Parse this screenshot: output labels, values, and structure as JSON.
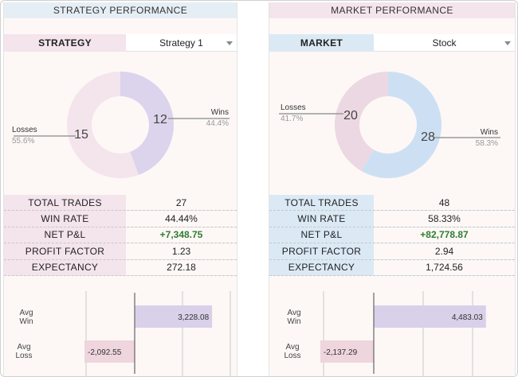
{
  "strategy": {
    "title": "STRATEGY PERFORMANCE",
    "selector_label": "STRATEGY",
    "selector_value": "Strategy 1",
    "donut": {
      "losses_label": "Losses",
      "losses_count": "15",
      "losses_pct": "55.6%",
      "wins_label": "Wins",
      "wins_count": "12",
      "wins_pct": "44.4%",
      "wins_fraction": 0.444,
      "loss_color": "#f4e4ec",
      "win_color": "#dcd3ec"
    },
    "stats": [
      {
        "label": "TOTAL TRADES",
        "value": "27"
      },
      {
        "label": "WIN RATE",
        "value": "44.44%"
      },
      {
        "label": "NET P&L",
        "value": "+7,348.75"
      },
      {
        "label": "PROFIT FACTOR",
        "value": "1.23"
      },
      {
        "label": "EXPECTANCY",
        "value": "272.18"
      }
    ],
    "avg": {
      "win_label_1": "Avg",
      "win_label_2": "Win",
      "win_value": 3228.08,
      "win_text": "3,228.08",
      "loss_label_1": "Avg",
      "loss_label_2": "Loss",
      "loss_value": -2092.55,
      "loss_text": "-2,092.55"
    }
  },
  "market": {
    "title": "MARKET PERFORMANCE",
    "selector_label": "MARKET",
    "selector_value": "Stock",
    "donut": {
      "losses_label": "Losses",
      "losses_count": "20",
      "losses_pct": "41.7%",
      "wins_label": "Wins",
      "wins_count": "28",
      "wins_pct": "58.3%",
      "wins_fraction": 0.583,
      "loss_color": "#ecd8e2",
      "win_color": "#cde0f3"
    },
    "stats": [
      {
        "label": "TOTAL TRADES",
        "value": "48"
      },
      {
        "label": "WIN RATE",
        "value": "58.33%"
      },
      {
        "label": "NET P&L",
        "value": "+82,778.87"
      },
      {
        "label": "PROFIT FACTOR",
        "value": "2.94"
      },
      {
        "label": "EXPECTANCY",
        "value": "1,724.56"
      }
    ],
    "avg": {
      "win_label_1": "Avg",
      "win_label_2": "Win",
      "win_value": 4483.03,
      "win_text": "4,483.03",
      "loss_label_1": "Avg",
      "loss_label_2": "Loss",
      "loss_value": -2137.29,
      "loss_text": "-2,137.29"
    }
  },
  "colors": {
    "positive": "#2e7d32",
    "win_bar": "#d9d0ea",
    "loss_bar": "#eed5de",
    "grid": "#c9c9c9"
  }
}
